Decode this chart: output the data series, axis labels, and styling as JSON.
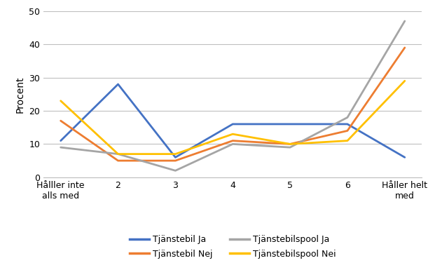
{
  "x_labels": [
    "Hålller inte\nalls med",
    "2",
    "3",
    "4",
    "5",
    "6",
    "Håller helt\nmed"
  ],
  "series": {
    "Tjänstebil Ja": {
      "values": [
        11,
        28,
        6,
        16,
        16,
        16,
        6
      ],
      "color": "#4472C4",
      "linewidth": 2.0
    },
    "Tjänstebil Nej": {
      "values": [
        17,
        5,
        5,
        11,
        10,
        14,
        39
      ],
      "color": "#ED7D31",
      "linewidth": 2.0
    },
    "Tjänstebilspool Ja": {
      "values": [
        9,
        7,
        2,
        10,
        9,
        18,
        47
      ],
      "color": "#A5A5A5",
      "linewidth": 2.0
    },
    "Tjänstebilspool Nei": {
      "values": [
        23,
        7,
        7,
        13,
        10,
        11,
        29
      ],
      "color": "#FFC000",
      "linewidth": 2.0
    }
  },
  "ylabel": "Procent",
  "ylim": [
    0,
    50
  ],
  "yticks": [
    0,
    10,
    20,
    30,
    40,
    50
  ],
  "legend_row1": [
    "Tjänstebil Ja",
    "Tjänstebil Nej"
  ],
  "legend_row2": [
    "Tjänstebilspool Ja",
    "Tjänstebilspool Nei"
  ],
  "background_color": "#ffffff",
  "grid_color": "#BFBFBF"
}
